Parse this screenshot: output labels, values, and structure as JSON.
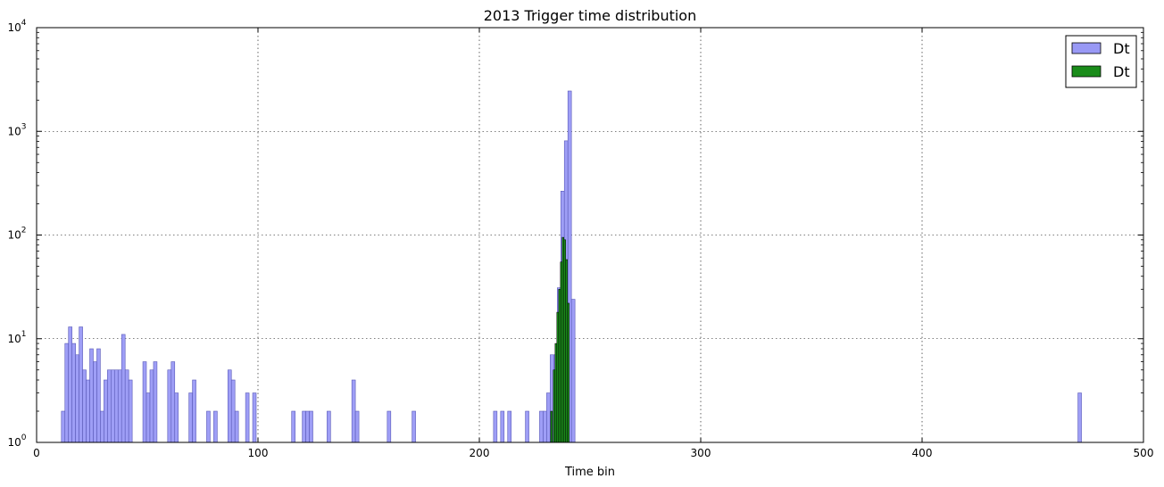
{
  "chart_data": {
    "type": "bar",
    "title": "2013 Trigger time distribution",
    "xlabel": "Time bin",
    "ylabel": "",
    "xlim": [
      0,
      500
    ],
    "ylim": [
      1,
      10000
    ],
    "yscale": "log",
    "grid": true,
    "legend_position": "top-right",
    "bin_width": 1.6,
    "x_ticks": [
      {
        "value": 0,
        "label": "0"
      },
      {
        "value": 100,
        "label": "100"
      },
      {
        "value": 200,
        "label": "200"
      },
      {
        "value": 300,
        "label": "300"
      },
      {
        "value": 400,
        "label": "400"
      },
      {
        "value": 500,
        "label": "500"
      }
    ],
    "y_ticks": [
      {
        "value": 1,
        "base": "10",
        "exp": "0"
      },
      {
        "value": 10,
        "base": "10",
        "exp": "1"
      },
      {
        "value": 100,
        "base": "10",
        "exp": "2"
      },
      {
        "value": 1000,
        "base": "10",
        "exp": "3"
      },
      {
        "value": 10000,
        "base": "10",
        "exp": "4"
      }
    ],
    "series": [
      {
        "name": "Dt",
        "color": "#9999f5",
        "edge": "#5a5ab8",
        "bars": [
          [
            11.2,
            2
          ],
          [
            12.8,
            9
          ],
          [
            14.4,
            13
          ],
          [
            16,
            9
          ],
          [
            17.6,
            7
          ],
          [
            19.2,
            13
          ],
          [
            20.8,
            5
          ],
          [
            22.4,
            4
          ],
          [
            24,
            8
          ],
          [
            25.6,
            6
          ],
          [
            27.2,
            8
          ],
          [
            28.8,
            2
          ],
          [
            30.4,
            4
          ],
          [
            32,
            5
          ],
          [
            33.6,
            5
          ],
          [
            35.2,
            5
          ],
          [
            36.8,
            5
          ],
          [
            38.4,
            11
          ],
          [
            40,
            5
          ],
          [
            41.6,
            4
          ],
          [
            48,
            6
          ],
          [
            49.6,
            3
          ],
          [
            51.2,
            5
          ],
          [
            52.8,
            6
          ],
          [
            59.2,
            5
          ],
          [
            60.8,
            6
          ],
          [
            62.4,
            3
          ],
          [
            68.8,
            3
          ],
          [
            70.4,
            4
          ],
          [
            76.8,
            2
          ],
          [
            80,
            2
          ],
          [
            86.4,
            5
          ],
          [
            88,
            4
          ],
          [
            89.6,
            2
          ],
          [
            94.4,
            3
          ],
          [
            97.6,
            3
          ],
          [
            115.2,
            2
          ],
          [
            120,
            2
          ],
          [
            121.6,
            2
          ],
          [
            123.2,
            2
          ],
          [
            131.2,
            2
          ],
          [
            142.4,
            4
          ],
          [
            144,
            2
          ],
          [
            158.4,
            2
          ],
          [
            169.6,
            2
          ],
          [
            206.4,
            2
          ],
          [
            209.6,
            2
          ],
          [
            212.8,
            2
          ],
          [
            220.8,
            2
          ],
          [
            227.2,
            2
          ],
          [
            228.8,
            2
          ],
          [
            230.4,
            3
          ],
          [
            232,
            7
          ],
          [
            233.6,
            7
          ],
          [
            235.2,
            31
          ],
          [
            236.8,
            265
          ],
          [
            238.4,
            810
          ],
          [
            240,
            2450
          ],
          [
            241.6,
            24
          ],
          [
            470.4,
            3
          ]
        ]
      },
      {
        "name": "Dt",
        "color": "#1a8c1a",
        "edge": "#000000",
        "bars": [
          [
            232.2,
            2
          ],
          [
            233.4,
            5
          ],
          [
            234.2,
            9
          ],
          [
            235,
            18
          ],
          [
            235.8,
            30
          ],
          [
            236.6,
            55
          ],
          [
            237.4,
            95
          ],
          [
            238.2,
            90
          ],
          [
            239,
            58
          ],
          [
            239.8,
            22
          ]
        ]
      }
    ]
  }
}
